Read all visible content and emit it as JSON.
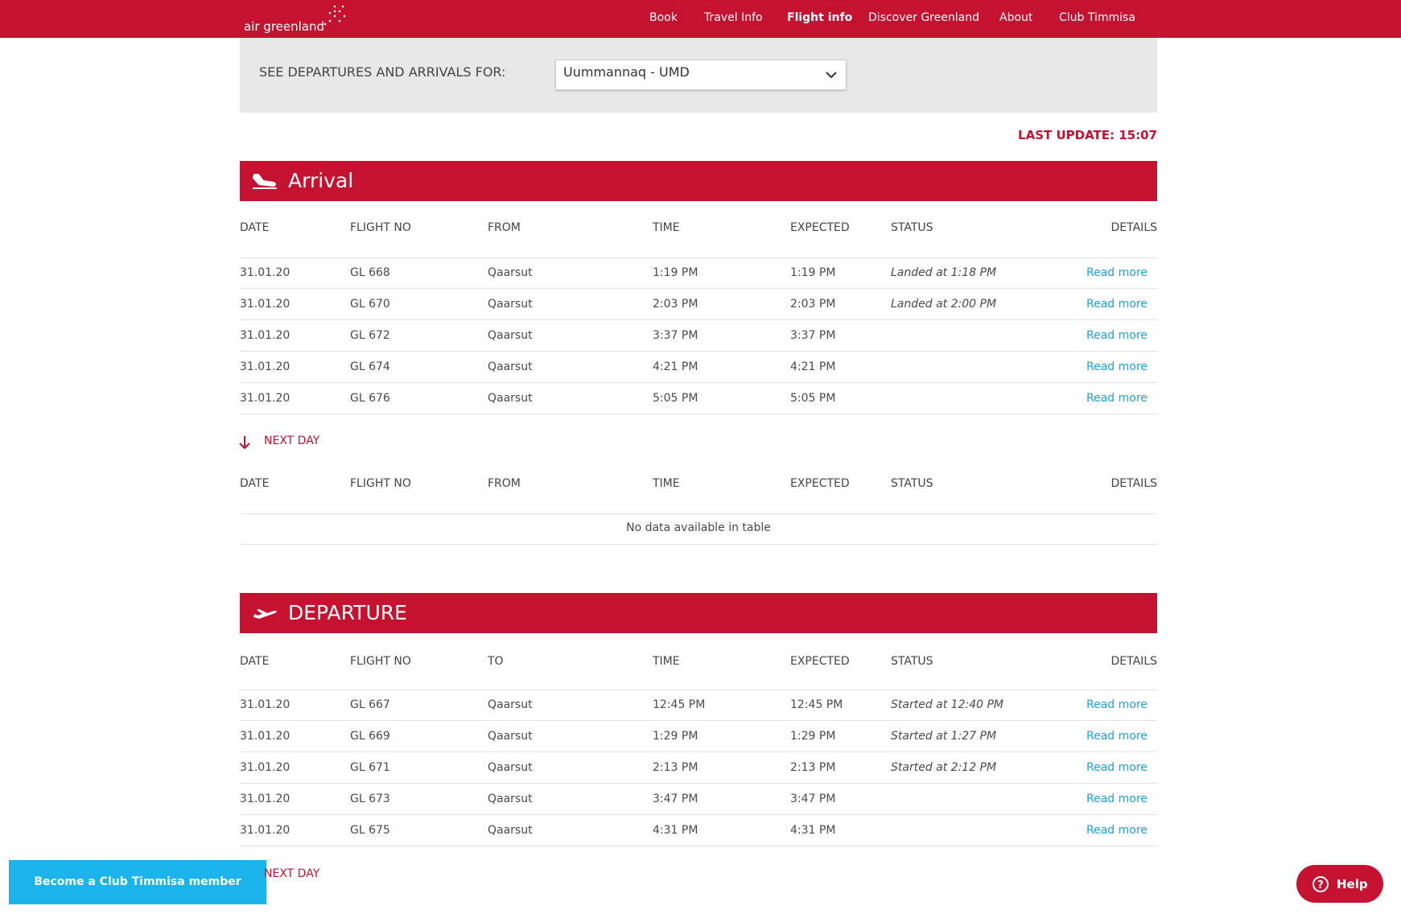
{
  "nav": {
    "logo": "air greenland",
    "links": [
      "Book",
      "Travel Info",
      "Flight info",
      "Discover Greenland",
      "About",
      "Club Timmisa"
    ]
  },
  "selector": {
    "label": "SEE DEPARTURES AND ARRIVALS FOR:",
    "value": "Uummannaq - UMD"
  },
  "last_update": "LAST UPDATE: 15:07",
  "arrival": {
    "title": "Arrival",
    "columns": [
      "DATE",
      "FLIGHT NO",
      "FROM",
      "TIME",
      "EXPECTED",
      "STATUS",
      "DETAILS"
    ],
    "rows": [
      [
        "31.01.20",
        "GL 668",
        "Qaarsut",
        "1:19 PM",
        "1:19 PM",
        "Landed at 1:18 PM",
        "Read more"
      ],
      [
        "31.01.20",
        "GL 670",
        "Qaarsut",
        "2:03 PM",
        "2:03 PM",
        "Landed at 2:00 PM",
        "Read more"
      ],
      [
        "31.01.20",
        "GL 672",
        "Qaarsut",
        "3:37 PM",
        "3:37 PM",
        null,
        "Read more"
      ],
      [
        "31.01.20",
        "GL 674",
        "Qaarsut",
        "4:21 PM",
        "4:21 PM",
        null,
        "Read more"
      ],
      [
        "31.01.20",
        "GL 676",
        "Qaarsut",
        "5:05 PM",
        "5:05 PM",
        null,
        "Read more"
      ]
    ],
    "next_day": "NEXT DAY",
    "next_columns": [
      "DATE",
      "FLIGHT NO",
      "FROM",
      "TIME",
      "EXPECTED",
      "STATUS",
      "DETAILS"
    ],
    "no_data": "No data available in table"
  },
  "departure": {
    "title": "DEPARTURE",
    "columns": [
      "DATE",
      "FLIGHT NO",
      "TO",
      "TIME",
      "EXPECTED",
      "STATUS",
      "DETAILS"
    ],
    "rows": [
      [
        "31.01.20",
        "GL 667",
        "Qaarsut",
        "12:45 PM",
        "12:45 PM",
        "Started at 12:40 PM",
        "Read more"
      ],
      [
        "31.01.20",
        "GL 669",
        "Qaarsut",
        "1:29 PM",
        "1:29 PM",
        "Started at 1:27 PM",
        "Read more"
      ],
      [
        "31.01.20",
        "GL 671",
        "Qaarsut",
        "2:13 PM",
        "2:13 PM",
        "Started at 2:12 PM",
        "Read more"
      ],
      [
        "31.01.20",
        "GL 673",
        "Qaarsut",
        "3:47 PM",
        "3:47 PM",
        null,
        "Read more"
      ],
      [
        "31.01.20",
        "GL 675",
        "Qaarsut",
        "4:31 PM",
        "4:31 PM",
        null,
        "Read more"
      ]
    ],
    "next_day": "NEXT DAY"
  },
  "cta": "Become a Club Timmisa member",
  "help": "Help"
}
